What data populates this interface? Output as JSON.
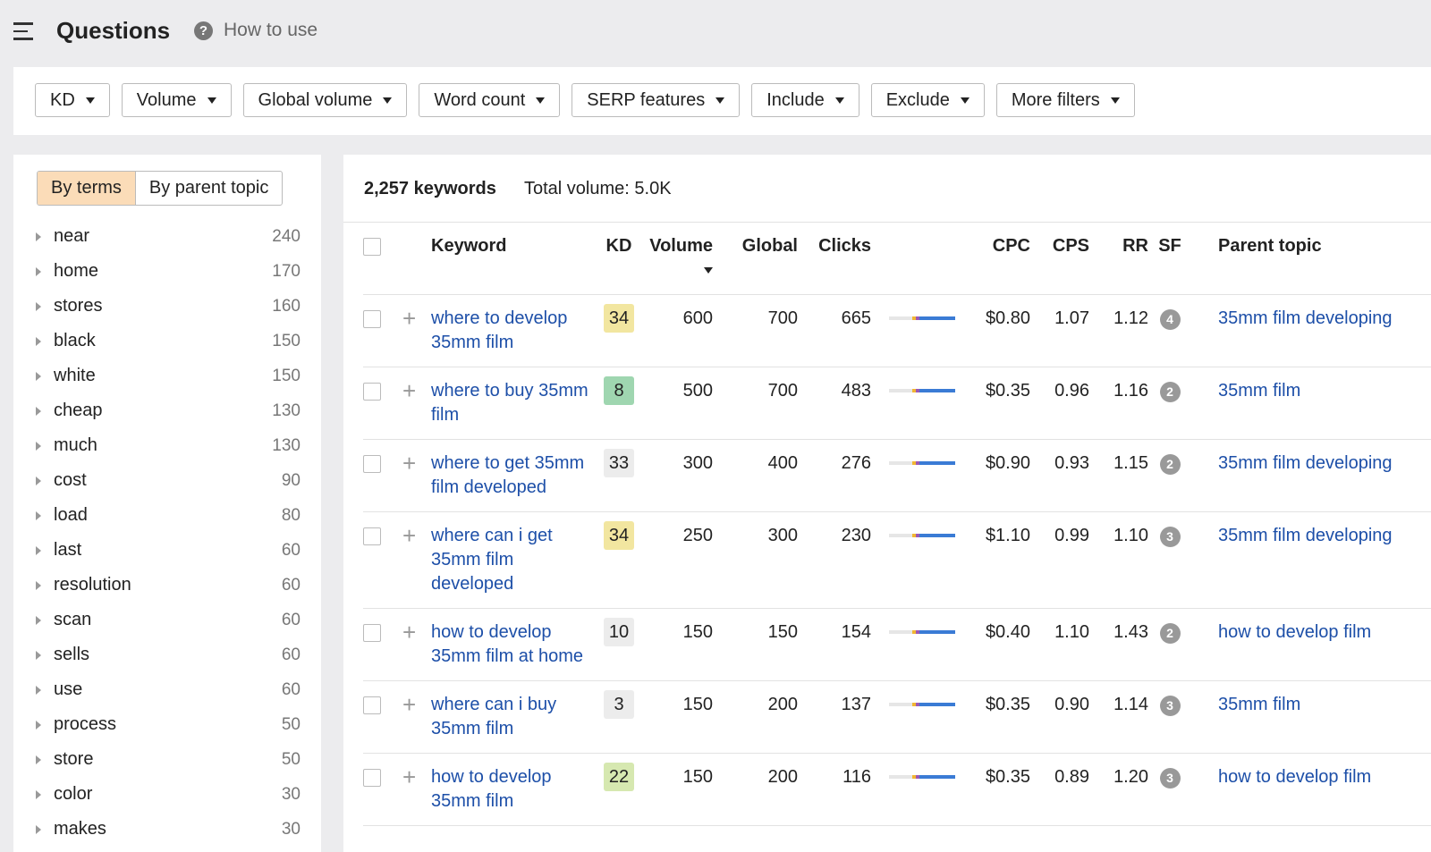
{
  "header": {
    "title": "Questions",
    "help": "How to use"
  },
  "filters": [
    "KD",
    "Volume",
    "Global volume",
    "Word count",
    "SERP features",
    "Include",
    "Exclude",
    "More filters"
  ],
  "sidebar": {
    "tabs": [
      "By terms",
      "By parent topic"
    ],
    "terms": [
      {
        "term": "near",
        "count": 240
      },
      {
        "term": "home",
        "count": 170
      },
      {
        "term": "stores",
        "count": 160
      },
      {
        "term": "black",
        "count": 150
      },
      {
        "term": "white",
        "count": 150
      },
      {
        "term": "cheap",
        "count": 130
      },
      {
        "term": "much",
        "count": 130
      },
      {
        "term": "cost",
        "count": 90
      },
      {
        "term": "load",
        "count": 80
      },
      {
        "term": "last",
        "count": 60
      },
      {
        "term": "resolution",
        "count": 60
      },
      {
        "term": "scan",
        "count": 60
      },
      {
        "term": "sells",
        "count": 60
      },
      {
        "term": "use",
        "count": 60
      },
      {
        "term": "process",
        "count": 50
      },
      {
        "term": "store",
        "count": 50
      },
      {
        "term": "color",
        "count": 30
      },
      {
        "term": "makes",
        "count": 30
      }
    ]
  },
  "summary": {
    "keywords": "2,257 keywords",
    "total_volume": "Total volume: 5.0K"
  },
  "table": {
    "columns": [
      "Keyword",
      "KD",
      "Volume",
      "Global",
      "Clicks",
      "CPC",
      "CPS",
      "RR",
      "SF",
      "Parent topic"
    ],
    "rows": [
      {
        "keyword": "where to develop 35mm film",
        "kd": 34,
        "kd_color": "#f2e6a0",
        "volume": 600,
        "global": 700,
        "clicks": 665,
        "cpc": "$0.80",
        "cps": "1.07",
        "rr": "1.12",
        "sf": 4,
        "parent": "35mm film developing"
      },
      {
        "keyword": "where to buy 35mm film",
        "kd": 8,
        "kd_color": "#9fd6b0",
        "volume": 500,
        "global": 700,
        "clicks": 483,
        "cpc": "$0.35",
        "cps": "0.96",
        "rr": "1.16",
        "sf": 2,
        "parent": "35mm film"
      },
      {
        "keyword": "where to get 35mm film developed",
        "kd": 33,
        "kd_color": "#ececec",
        "volume": 300,
        "global": 400,
        "clicks": 276,
        "cpc": "$0.90",
        "cps": "0.93",
        "rr": "1.15",
        "sf": 2,
        "parent": "35mm film developing"
      },
      {
        "keyword": "where can i get 35mm film developed",
        "kd": 34,
        "kd_color": "#f2e6a0",
        "volume": 250,
        "global": 300,
        "clicks": 230,
        "cpc": "$1.10",
        "cps": "0.99",
        "rr": "1.10",
        "sf": 3,
        "parent": "35mm film developing"
      },
      {
        "keyword": "how to develop 35mm film at home",
        "kd": 10,
        "kd_color": "#ececec",
        "volume": 150,
        "global": 150,
        "clicks": 154,
        "cpc": "$0.40",
        "cps": "1.10",
        "rr": "1.43",
        "sf": 2,
        "parent": "how to develop film"
      },
      {
        "keyword": "where can i buy 35mm film",
        "kd": 3,
        "kd_color": "#ececec",
        "volume": 150,
        "global": 200,
        "clicks": 137,
        "cpc": "$0.35",
        "cps": "0.90",
        "rr": "1.14",
        "sf": 3,
        "parent": "35mm film"
      },
      {
        "keyword": "how to develop 35mm film",
        "kd": 22,
        "kd_color": "#d6e8b0",
        "volume": 150,
        "global": 200,
        "clicks": 116,
        "cpc": "$0.35",
        "cps": "0.89",
        "rr": "1.20",
        "sf": 3,
        "parent": "how to develop film"
      }
    ]
  }
}
